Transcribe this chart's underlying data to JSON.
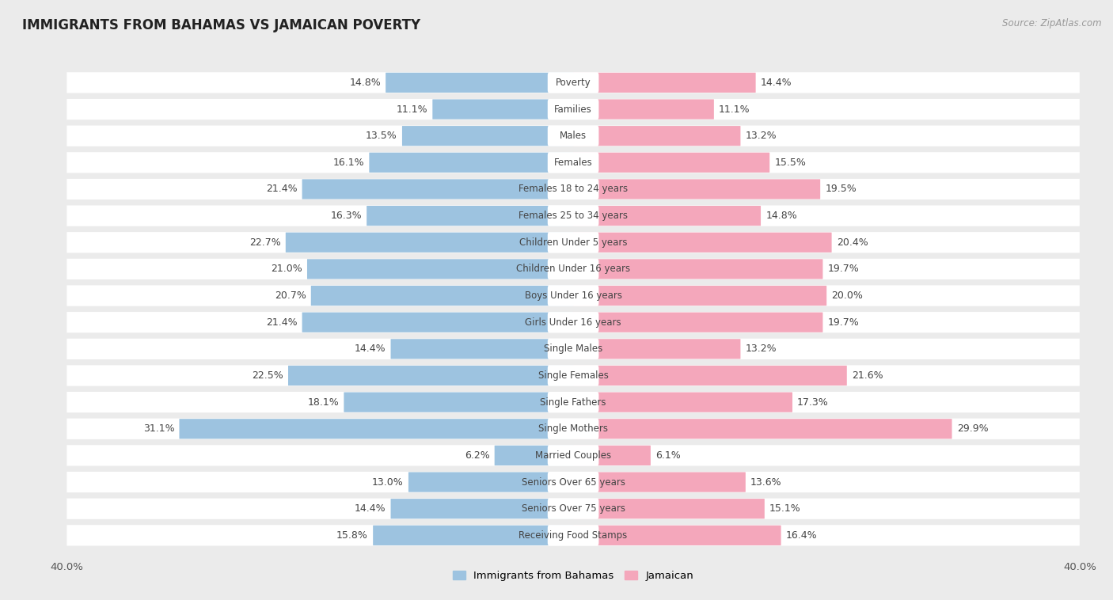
{
  "title": "IMMIGRANTS FROM BAHAMAS VS JAMAICAN POVERTY",
  "source": "Source: ZipAtlas.com",
  "categories": [
    "Poverty",
    "Families",
    "Males",
    "Females",
    "Females 18 to 24 years",
    "Females 25 to 34 years",
    "Children Under 5 years",
    "Children Under 16 years",
    "Boys Under 16 years",
    "Girls Under 16 years",
    "Single Males",
    "Single Females",
    "Single Fathers",
    "Single Mothers",
    "Married Couples",
    "Seniors Over 65 years",
    "Seniors Over 75 years",
    "Receiving Food Stamps"
  ],
  "bahamas_values": [
    14.8,
    11.1,
    13.5,
    16.1,
    21.4,
    16.3,
    22.7,
    21.0,
    20.7,
    21.4,
    14.4,
    22.5,
    18.1,
    31.1,
    6.2,
    13.0,
    14.4,
    15.8
  ],
  "jamaican_values": [
    14.4,
    11.1,
    13.2,
    15.5,
    19.5,
    14.8,
    20.4,
    19.7,
    20.0,
    19.7,
    13.2,
    21.6,
    17.3,
    29.9,
    6.1,
    13.6,
    15.1,
    16.4
  ],
  "bahamas_color": "#9dc3e0",
  "jamaican_color": "#f4a7bb",
  "row_bg_color": "#ffffff",
  "outer_bg_color": "#ebebeb",
  "xlim": 40.0,
  "bar_height": 0.72,
  "value_fontsize": 9,
  "cat_fontsize": 8.5,
  "title_fontsize": 12,
  "legend_labels": [
    "Immigrants from Bahamas",
    "Jamaican"
  ]
}
